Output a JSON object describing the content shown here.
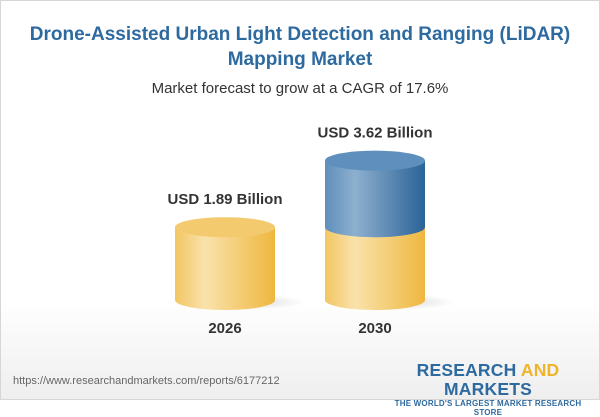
{
  "title": "Drone-Assisted Urban Light Detection and Ranging (LiDAR) Mapping Market",
  "subtitle": "Market forecast to grow at a CAGR of 17.6%",
  "chart_data": {
    "type": "bar",
    "style": "3d-cylinder",
    "categories": [
      "2026",
      "2030"
    ],
    "values": [
      1.89,
      3.62
    ],
    "data_labels": [
      "USD 1.89 Billion",
      "USD 3.62 Billion"
    ],
    "unit": "USD Billion",
    "colors": {
      "base": "#f2c45a",
      "growth": "#4a80b0"
    }
  },
  "footer": {
    "url": "https://www.researchandmarkets.com/reports/6177212",
    "logo_word1": "RESEARCH",
    "logo_word2": "AND",
    "logo_word3": "MARKETS",
    "tagline": "THE WORLD'S LARGEST MARKET RESEARCH STORE"
  }
}
